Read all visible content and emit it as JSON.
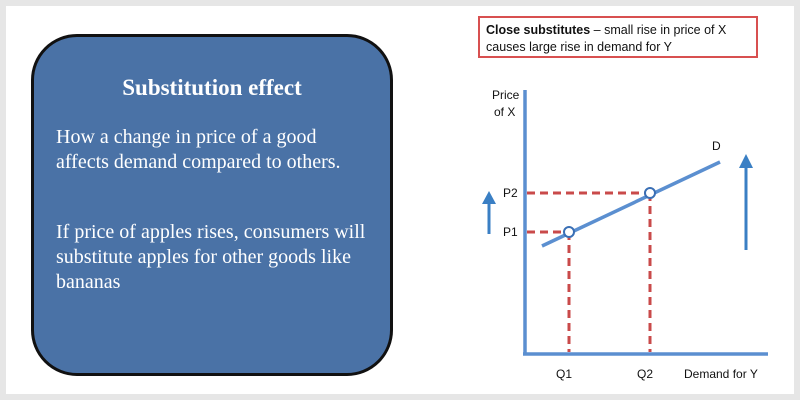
{
  "card": {
    "title": "Substitution effect",
    "paragraph1": "How a change in price of a good affects demand compared to others.",
    "paragraph2": "If price of apples rises, consumers will substitute apples for other goods like bananas"
  },
  "callout": {
    "bold": "Close substitutes",
    "rest": " – small rise in price of X",
    "line2": "causes large rise in demand for Y"
  },
  "diagram": {
    "y_label_1": "Price",
    "y_label_2": "of X",
    "x_label": "Demand for Y",
    "curve_label": "D",
    "p1": "P1",
    "p2": "P2",
    "q1": "Q1",
    "q2": "Q2"
  },
  "colors": {
    "card": "#4a72a6",
    "axis": "#5b8fd0",
    "dashed": "#c94a4a",
    "callout_border": "#d85050"
  }
}
